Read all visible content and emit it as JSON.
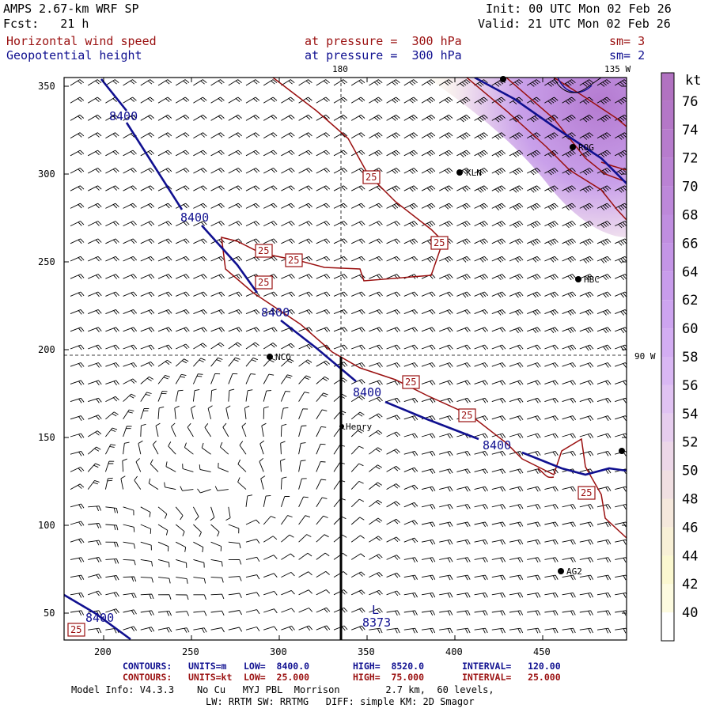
{
  "header": {
    "model": "AMPS 2.67-km WRF SP",
    "init": "Init: 00 UTC Mon 02 Feb 26",
    "fcst": "Fcst:   21 h",
    "valid": "Valid: 21 UTC Mon 02 Feb 26",
    "field1_name": "Horizontal wind speed",
    "field1_level": "at pressure =  300 hPa",
    "field1_sm": "sm= 3",
    "field2_name": "Geopotential height",
    "field2_level": "at pressure =  300 hPa",
    "field2_sm": "sm= 2"
  },
  "map": {
    "lon_labels": {
      "top": "180",
      "top_right": "135 W",
      "right": "90 W"
    },
    "x_ticks": [
      "200",
      "250",
      "300",
      "350",
      "400",
      "450"
    ],
    "y_ticks": [
      "50",
      "100",
      "150",
      "200",
      "250",
      "300",
      "350"
    ],
    "height_contour_labels": [
      "8400",
      "8400",
      "8400",
      "8400",
      "8400",
      "8400"
    ],
    "low_marker": "L",
    "low_value": "8373",
    "speed_contour_label": "25",
    "stations": [
      "KLN",
      "ROG",
      "HBC",
      "NCO",
      "Henry",
      "AG2"
    ],
    "colors": {
      "height_contour": "#101090",
      "speed_contour": "#9a1010",
      "section_line": "#000000"
    }
  },
  "colorbar": {
    "unit": "kt",
    "levels": [
      "40",
      "42",
      "44",
      "46",
      "48",
      "50",
      "52",
      "54",
      "56",
      "58",
      "60",
      "62",
      "64",
      "66",
      "68",
      "70",
      "72",
      "74",
      "76"
    ],
    "colors": [
      "#ffffff",
      "#fdfbe0",
      "#fbf8d0",
      "#f8f0d6",
      "#f5e8dc",
      "#f0dfe2",
      "#ecd7e8",
      "#e6cdee",
      "#e0c2f2",
      "#d9b7f3",
      "#d3adf2",
      "#cda4ef",
      "#c89ceb",
      "#c495e6",
      "#c08ee0",
      "#bd88da",
      "#ba82d4",
      "#b77ccd",
      "#b477c7",
      "#b172c1"
    ]
  },
  "footer": {
    "c1_label": "CONTOURS:",
    "c1_units": "UNITS=m",
    "c1_low": "LOW=  8400.0",
    "c1_high": "HIGH=  8520.0",
    "c1_int": "INTERVAL=   120.00",
    "c2_label": "CONTOURS:",
    "c2_units": "UNITS=kt",
    "c2_low": "LOW=  25.000",
    "c2_high": "HIGH=  75.000",
    "c2_int": "INTERVAL=   25.000",
    "info1": "Model Info: V4.3.3    No Cu   MYJ PBL  Morrison        2.7 km,  60 levels,",
    "info2": "LW: RRTM SW: RRTMG   DIFF: simple KM: 2D Smagor"
  }
}
